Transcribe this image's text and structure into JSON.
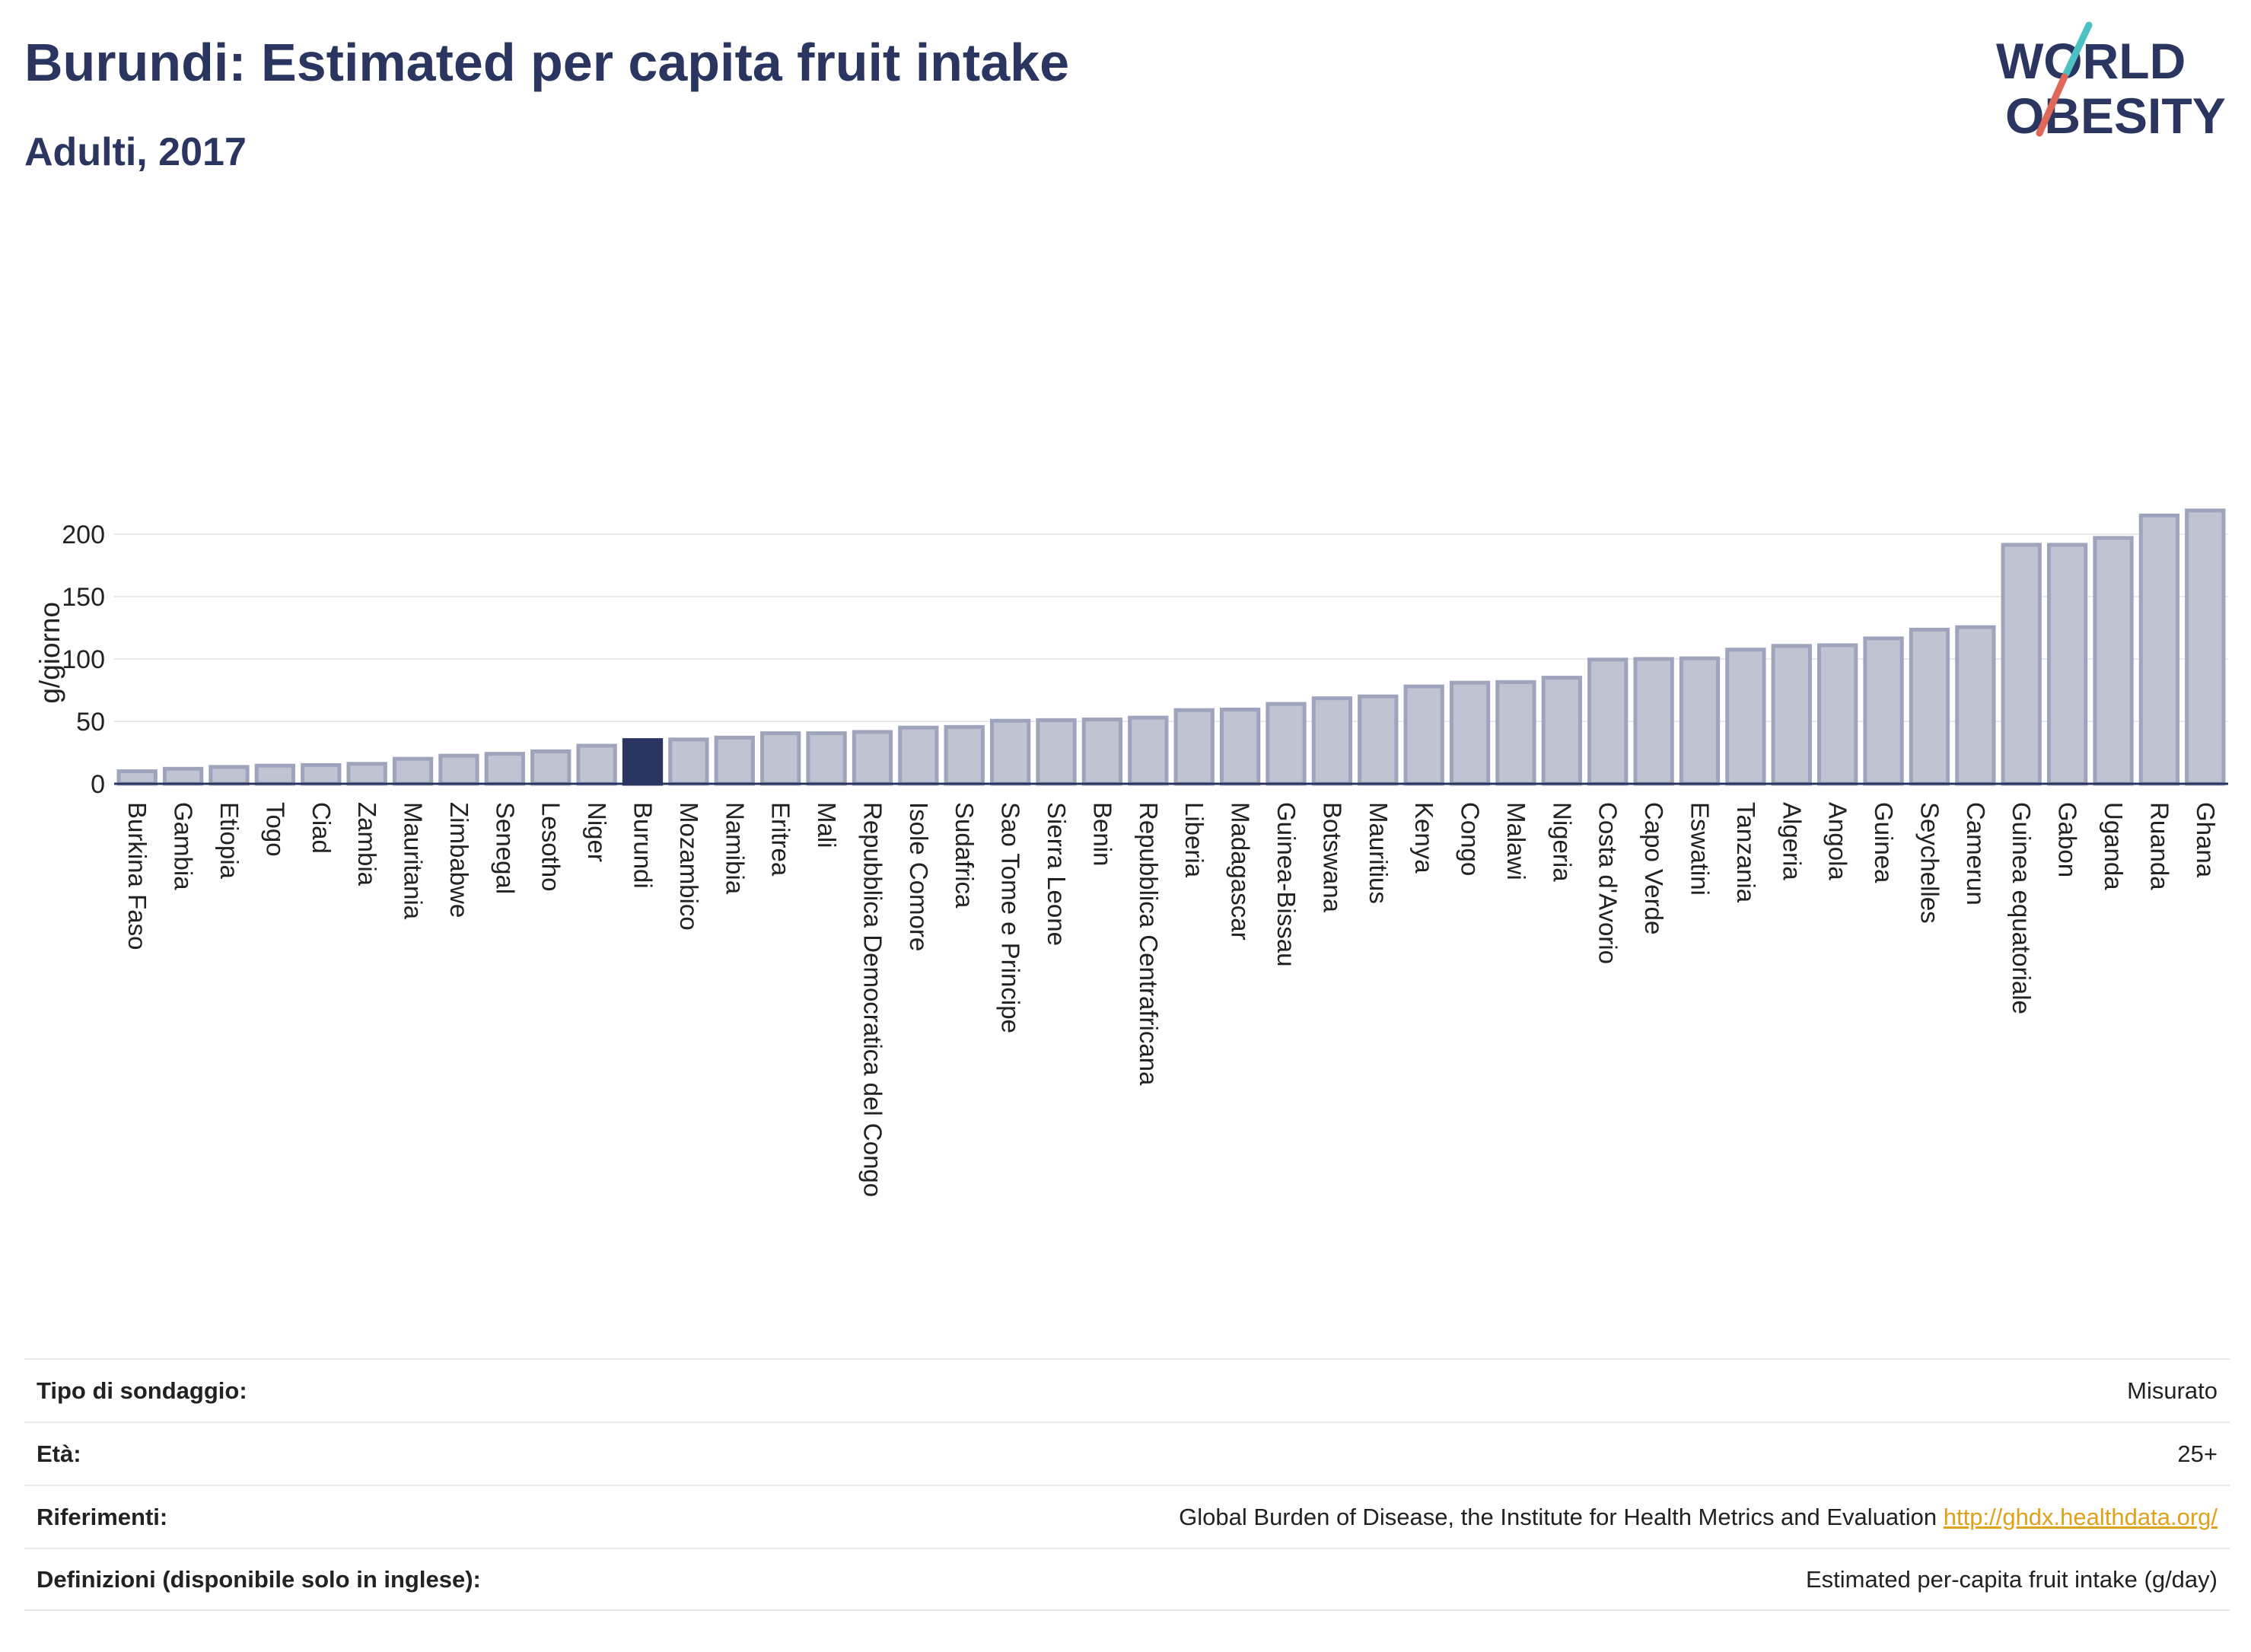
{
  "header": {
    "title": "Burundi: Estimated per capita fruit intake",
    "subtitle": "Adulti, 2017"
  },
  "logo": {
    "line1": "WORLD",
    "line2": "OBESITY",
    "colors": {
      "text": "#2a3560",
      "slash_red": "#e0685a",
      "slash_teal": "#4cc1c4"
    }
  },
  "colors": {
    "bar_fill": "#bfc3d2",
    "bar_stroke": "#9ea4bc",
    "highlight_fill": "#2a3560",
    "grid": "#e8e9ee",
    "axis": "#2a3560"
  },
  "chart_data": {
    "type": "bar",
    "ylabel": "g/giorno",
    "ylim": [
      0,
      225
    ],
    "yticks": [
      0,
      50,
      100,
      150,
      200
    ],
    "grid": true,
    "highlight": "Burundi",
    "categories": [
      "Burkina Faso",
      "Gambia",
      "Etiopia",
      "Togo",
      "Ciad",
      "Zambia",
      "Mauritania",
      "Zimbabwe",
      "Senegal",
      "Lesotho",
      "Niger",
      "Burundi",
      "Mozambico",
      "Namibia",
      "Eritrea",
      "Mali",
      "Repubblica Democratica del Congo",
      "Isole Comore",
      "Sudafrica",
      "Sao Tome e Principe",
      "Sierra Leone",
      "Benin",
      "Repubblica Centrafricana",
      "Liberia",
      "Madagascar",
      "Guinea-Bissau",
      "Botswana",
      "Mauritius",
      "Kenya",
      "Congo",
      "Malawi",
      "Nigeria",
      "Costa d'Avorio",
      "Capo Verde",
      "Eswatini",
      "Tanzania",
      "Algeria",
      "Angola",
      "Guinea",
      "Seychelles",
      "Camerun",
      "Guinea equatoriale",
      "Gabon",
      "Uganda",
      "Ruanda",
      "Ghana"
    ],
    "values": [
      10,
      12,
      13.5,
      14.5,
      15,
      16,
      20,
      22.5,
      24,
      26,
      30.5,
      35,
      35.5,
      37,
      40.5,
      40.5,
      41.5,
      45,
      45.5,
      50.5,
      51,
      51.5,
      53,
      59,
      59.5,
      64,
      68.5,
      70,
      78,
      81,
      81.5,
      85,
      99.5,
      100,
      100.5,
      107.5,
      110.5,
      111,
      116.5,
      123.5,
      125.5,
      191.5,
      191.5,
      197,
      215,
      219
    ]
  },
  "info": [
    {
      "label": "Tipo di sondaggio:",
      "value": "Misurato"
    },
    {
      "label": "Età:",
      "value": "25+"
    },
    {
      "label": "Riferimenti:",
      "value": "Global Burden of Disease, the Institute for Health Metrics and Evaluation",
      "link": "http://ghdx.healthdata.org/"
    },
    {
      "label": "Definizioni (disponibile solo in inglese):",
      "value": "Estimated per-capita fruit intake (g/day)"
    }
  ]
}
